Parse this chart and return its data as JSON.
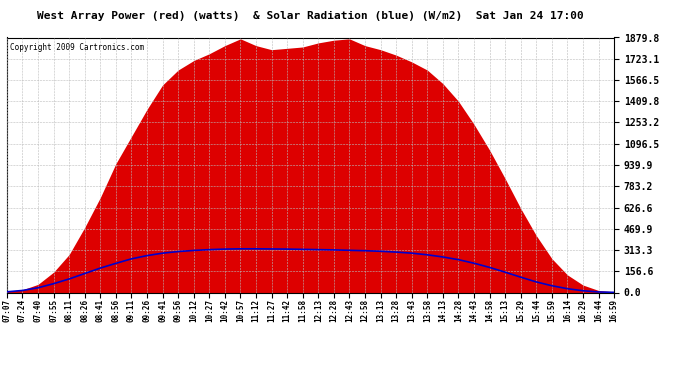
{
  "title": "West Array Power (red) (watts)  & Solar Radiation (blue) (W/m2)  Sat Jan 24 17:00",
  "copyright": "Copyright 2009 Cartronics.com",
  "yticks": [
    0.0,
    156.6,
    313.3,
    469.9,
    626.6,
    783.2,
    939.9,
    1096.5,
    1253.2,
    1409.8,
    1566.5,
    1723.1,
    1879.8
  ],
  "ymax": 1879.8,
  "ymin": 0.0,
  "background_color": "#ffffff",
  "plot_bg_color": "#ffffff",
  "grid_color": "#bbbbbb",
  "red_color": "#dd0000",
  "blue_color": "#0000cc",
  "time_labels": [
    "07:07",
    "07:24",
    "07:40",
    "07:55",
    "08:11",
    "08:26",
    "08:41",
    "08:56",
    "09:11",
    "09:26",
    "09:41",
    "09:56",
    "10:12",
    "10:27",
    "10:42",
    "10:57",
    "11:12",
    "11:27",
    "11:42",
    "11:58",
    "12:13",
    "12:28",
    "12:43",
    "12:58",
    "13:13",
    "13:28",
    "13:43",
    "13:58",
    "14:13",
    "14:28",
    "14:43",
    "14:58",
    "15:13",
    "15:29",
    "15:44",
    "15:59",
    "16:14",
    "16:29",
    "16:44",
    "16:59"
  ],
  "power_values": [
    10,
    20,
    60,
    150,
    280,
    480,
    700,
    950,
    1150,
    1350,
    1530,
    1640,
    1710,
    1760,
    1820,
    1870,
    1820,
    1790,
    1800,
    1810,
    1840,
    1860,
    1870,
    1820,
    1790,
    1750,
    1700,
    1640,
    1540,
    1410,
    1240,
    1050,
    840,
    620,
    420,
    250,
    130,
    55,
    15,
    5
  ],
  "solar_values": [
    5,
    15,
    35,
    65,
    100,
    140,
    180,
    215,
    248,
    272,
    290,
    302,
    310,
    316,
    320,
    322,
    322,
    321,
    320,
    318,
    316,
    314,
    311,
    308,
    304,
    298,
    290,
    278,
    262,
    242,
    216,
    185,
    150,
    113,
    78,
    50,
    28,
    13,
    4,
    1
  ]
}
